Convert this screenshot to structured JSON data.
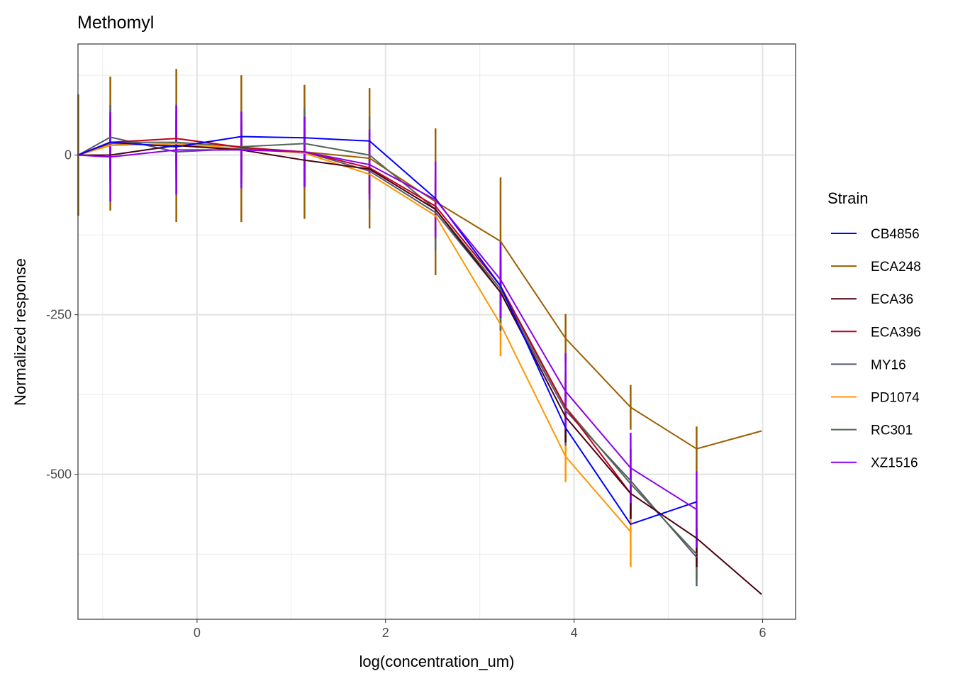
{
  "chart_data": {
    "type": "line",
    "title": "Methomyl",
    "xlabel": "log(concentration_um)",
    "ylabel": "Normalized response",
    "xlim": [
      -1.263,
      6.35
    ],
    "ylim": [
      -727,
      174
    ],
    "xticks": [
      0,
      2,
      4,
      6
    ],
    "xtick_labels": [
      "0",
      "2",
      "4",
      "6"
    ],
    "yticks": [
      0,
      -250,
      -500
    ],
    "ytick_labels": [
      "0",
      "-250",
      "-500"
    ],
    "grid": true,
    "legend_title": "Strain",
    "legend_position": "right",
    "x": [
      -1.26,
      -0.92,
      -0.22,
      0.47,
      1.14,
      1.83,
      2.53,
      3.22,
      3.91,
      4.6,
      5.3,
      5.99
    ],
    "series": [
      {
        "name": "ECA248",
        "color": "#9A5F00",
        "values": [
          0,
          18,
          15,
          10,
          5,
          -5,
          -73,
          -135,
          -287,
          -395,
          -460,
          -432
        ],
        "error": [
          95,
          105,
          120,
          115,
          105,
          110,
          115,
          100,
          38,
          35,
          35,
          0
        ]
      },
      {
        "name": "PD1074",
        "color": "#FF9500",
        "values": [
          0,
          15,
          18,
          10,
          3,
          -30,
          -95,
          -265,
          -472,
          -590,
          null,
          null
        ],
        "error": [
          0,
          62,
          60,
          55,
          50,
          50,
          55,
          50,
          40,
          55,
          0,
          0
        ]
      },
      {
        "name": "MY16",
        "color": "#555A70",
        "values": [
          0,
          28,
          5,
          10,
          5,
          -25,
          -90,
          -215,
          -400,
          -510,
          -630,
          null
        ],
        "error": [
          0,
          50,
          65,
          55,
          55,
          60,
          60,
          60,
          55,
          50,
          45,
          0
        ]
      },
      {
        "name": "RC301",
        "color": "#556655",
        "values": [
          0,
          20,
          20,
          13,
          18,
          0,
          -85,
          -210,
          -395,
          -515,
          -625,
          null
        ],
        "error": [
          0,
          50,
          60,
          55,
          55,
          60,
          60,
          65,
          55,
          55,
          40,
          0
        ]
      },
      {
        "name": "ECA396",
        "color": "#C0001F",
        "values": [
          0,
          20,
          26,
          12,
          5,
          -20,
          -80,
          -205,
          -395,
          -530,
          null,
          null
        ],
        "error": [
          0,
          40,
          40,
          40,
          40,
          40,
          40,
          40,
          40,
          40,
          0,
          0
        ]
      },
      {
        "name": "ECA36",
        "color": "#4A0010",
        "values": [
          0,
          0,
          15,
          8,
          -8,
          -22,
          -85,
          -215,
          -410,
          -530,
          -600,
          -688
        ],
        "error": [
          0,
          40,
          40,
          40,
          40,
          40,
          40,
          40,
          40,
          40,
          45,
          0
        ]
      },
      {
        "name": "CB4856",
        "color": "#0000FF",
        "values": [
          0,
          20,
          13,
          29,
          27,
          22,
          -68,
          -205,
          -427,
          -578,
          -543,
          null
        ],
        "error": [
          0,
          0,
          0,
          0,
          0,
          0,
          0,
          0,
          0,
          0,
          0,
          0
        ]
      },
      {
        "name": "XZ1516",
        "color": "#8B00EE",
        "values": [
          0,
          -3,
          8,
          8,
          5,
          -15,
          -70,
          -195,
          -370,
          -490,
          -555,
          null
        ],
        "error": [
          0,
          70,
          70,
          60,
          55,
          55,
          60,
          60,
          60,
          55,
          60,
          0
        ]
      }
    ],
    "legend_order": [
      "CB4856",
      "ECA248",
      "ECA36",
      "ECA396",
      "MY16",
      "PD1074",
      "RC301",
      "XZ1516"
    ]
  }
}
